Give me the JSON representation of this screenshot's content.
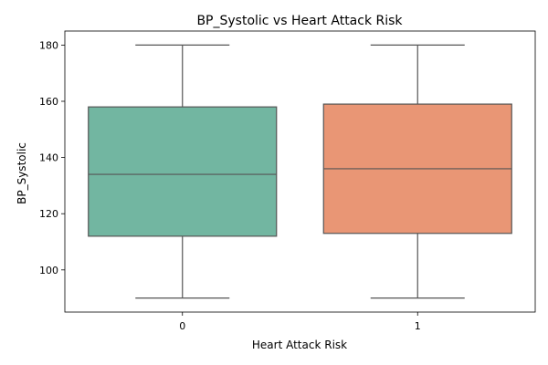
{
  "chart_data": {
    "type": "box",
    "title": "BP_Systolic vs Heart Attack Risk",
    "xlabel": "Heart Attack Risk",
    "ylabel": "BP_Systolic",
    "categories": [
      "0",
      "1"
    ],
    "ylim": [
      85,
      185
    ],
    "yticks": [
      100,
      120,
      140,
      160,
      180
    ],
    "grid": false,
    "series": [
      {
        "category": "0",
        "min": 90,
        "q1": 112,
        "median": 134,
        "q3": 158,
        "max": 180,
        "color": "#72b6a1"
      },
      {
        "category": "1",
        "min": 90,
        "q1": 113,
        "median": 136,
        "q3": 159,
        "max": 180,
        "color": "#e99675"
      }
    ],
    "edge_color": "#555555"
  }
}
